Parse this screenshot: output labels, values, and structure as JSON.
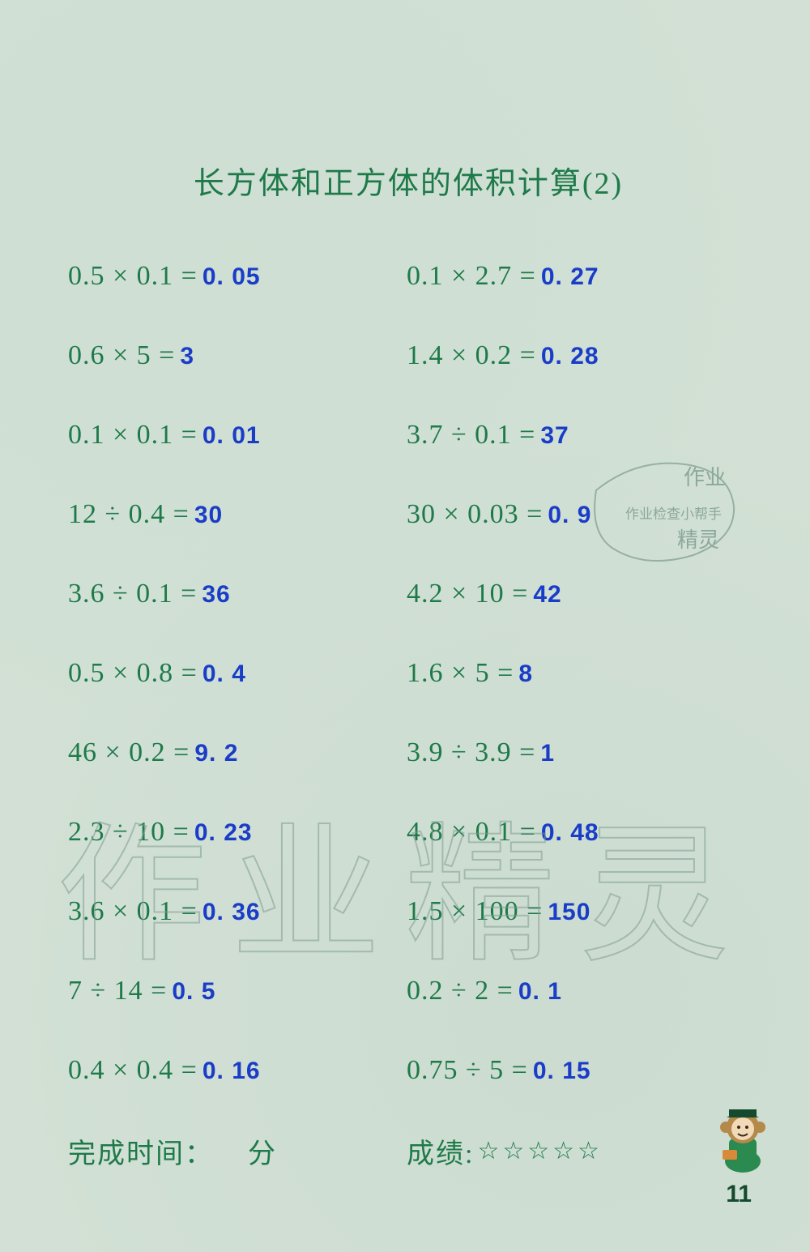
{
  "title": "长方体和正方体的体积计算(2)",
  "colors": {
    "background": "#d2e0d5",
    "problem_text": "#1e7a4a",
    "answer_text": "#1a3dc8",
    "watermark_stroke": "#7f9d90",
    "mascot_green": "#2a8a4f",
    "mascot_brown": "#b5894a",
    "mascot_face": "#f2d9b8"
  },
  "fontsize": {
    "title": 38,
    "problem": 34,
    "answer": 30,
    "watermark": 185
  },
  "rows": [
    {
      "left_problem": "0.5 × 0.1 =",
      "left_answer": "0. 05",
      "right_problem": "0.1 × 2.7 =",
      "right_answer": "0. 27"
    },
    {
      "left_problem": "0.6 × 5 =",
      "left_answer": "3",
      "right_problem": "1.4 × 0.2 =",
      "right_answer": "0. 28"
    },
    {
      "left_problem": "0.1 × 0.1 =",
      "left_answer": "0. 01",
      "right_problem": "3.7 ÷ 0.1 =",
      "right_answer": "37"
    },
    {
      "left_problem": "12 ÷ 0.4 =",
      "left_answer": "30",
      "right_problem": "30 × 0.03 =",
      "right_answer": "0. 9"
    },
    {
      "left_problem": "3.6 ÷ 0.1 =",
      "left_answer": "36",
      "right_problem": "4.2 × 10 =",
      "right_answer": "42"
    },
    {
      "left_problem": "0.5 × 0.8 =",
      "left_answer": "0. 4",
      "right_problem": "1.6 × 5 =",
      "right_answer": "8"
    },
    {
      "left_problem": "46 × 0.2 =",
      "left_answer": "9. 2",
      "right_problem": "3.9 ÷ 3.9 =",
      "right_answer": "1"
    },
    {
      "left_problem": "2.3 ÷ 10 =",
      "left_answer": "0. 23",
      "right_problem": "4.8 × 0.1 =",
      "right_answer": "0. 48"
    },
    {
      "left_problem": "3.6 × 0.1 =",
      "left_answer": "0. 36",
      "right_problem": "1.5 × 100 =",
      "right_answer": "150"
    },
    {
      "left_problem": "7 ÷ 14 =",
      "left_answer": "0. 5",
      "right_problem": "0.2 ÷ 2 =",
      "right_answer": "0. 1"
    },
    {
      "left_problem": "0.4 × 0.4 =",
      "left_answer": "0. 16",
      "right_problem": "0.75 ÷ 5 =",
      "right_answer": "0. 15"
    }
  ],
  "footer": {
    "time_label": "完成时间：",
    "time_unit": "分",
    "score_label": "成绩:",
    "stars": "☆☆☆☆☆"
  },
  "page_number": "11",
  "watermark_big": "作业精灵",
  "stamp": {
    "line1": "作业",
    "line2": "作业检查小帮手",
    "line3": "精灵"
  }
}
